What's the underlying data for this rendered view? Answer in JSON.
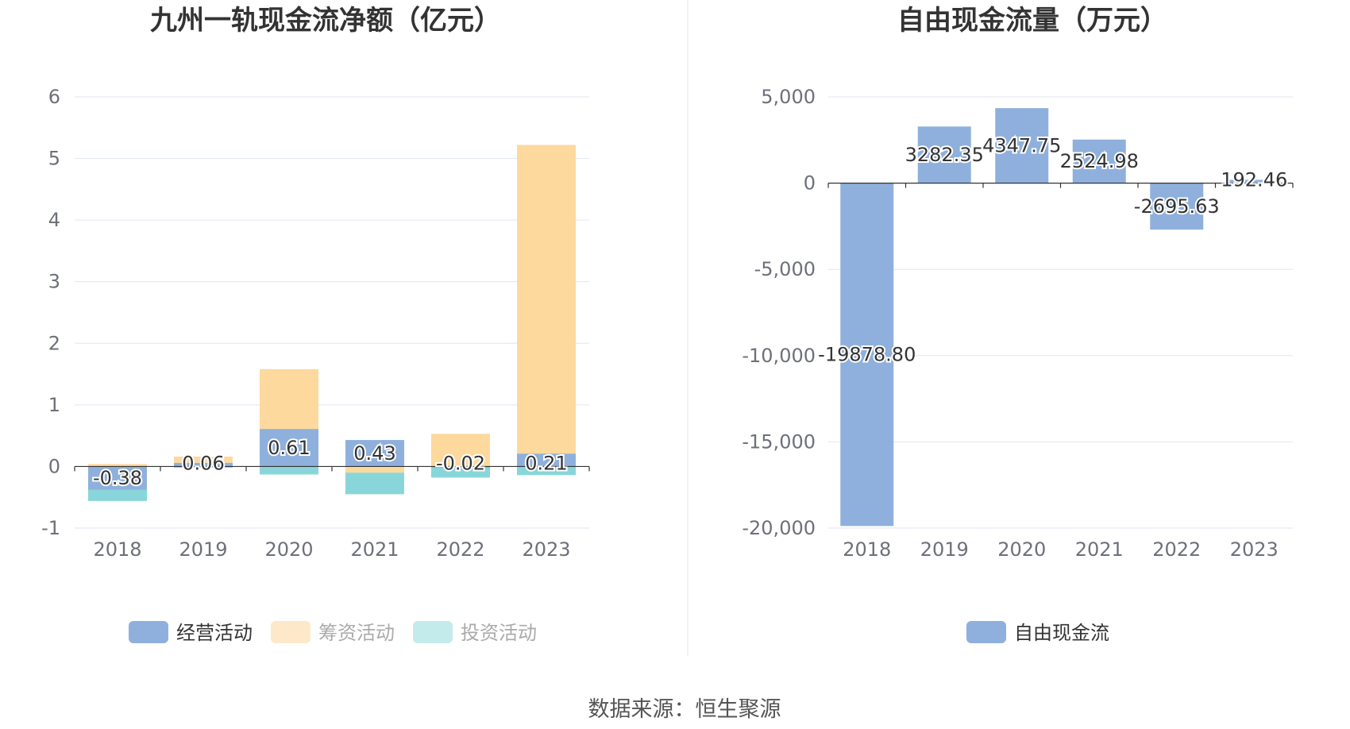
{
  "chart_data": [
    {
      "type": "bar",
      "stacked": true,
      "title": "九州一轨现金流净额（亿元）",
      "categories": [
        "2018",
        "2019",
        "2020",
        "2021",
        "2022",
        "2023"
      ],
      "ylim": [
        -1,
        6
      ],
      "yticks": [
        "6",
        "5",
        "4",
        "3",
        "2",
        "1",
        "0",
        "-1"
      ],
      "ytick_values": [
        6,
        5,
        4,
        3,
        2,
        1,
        0,
        -1
      ],
      "grid": true,
      "legend_position": "bottom",
      "series": [
        {
          "name": "经营活动",
          "color": "#8fb0dc",
          "values": [
            -0.38,
            0.06,
            0.61,
            0.43,
            -0.02,
            0.21
          ],
          "labels": [
            "-0.38",
            "0.06",
            "0.61",
            "0.43",
            "-0.02",
            "0.21"
          ]
        },
        {
          "name": "筹资活动",
          "color": "#fdd99e",
          "values": [
            0.04,
            0.1,
            0.97,
            -0.1,
            0.53,
            5.01
          ]
        },
        {
          "name": "投资活动",
          "color": "#88d6d9",
          "values": [
            -0.18,
            -0.02,
            -0.13,
            -0.35,
            -0.16,
            -0.14
          ]
        }
      ],
      "legend_colors": [
        "#8fb0dc",
        "#fde9c9",
        "#c3ebec"
      ],
      "legend_text_colors": [
        "#333333",
        "#aaaaaa",
        "#aaaaaa"
      ]
    },
    {
      "type": "bar",
      "title": "自由现金流量（万元）",
      "categories": [
        "2018",
        "2019",
        "2020",
        "2021",
        "2022",
        "2023"
      ],
      "ylim": [
        -20000,
        5000
      ],
      "yticks": [
        "5,000",
        "0",
        "-5,000",
        "-10,000",
        "-15,000",
        "-20,000"
      ],
      "ytick_values": [
        5000,
        0,
        -5000,
        -10000,
        -15000,
        -20000
      ],
      "grid": true,
      "legend_position": "bottom",
      "series": [
        {
          "name": "自由现金流",
          "color": "#8fb0dc",
          "values": [
            -19878.8,
            3282.35,
            4347.75,
            2524.98,
            -2695.63,
            192.46
          ],
          "labels": [
            "-19878.80",
            "3282.35",
            "4347.75",
            "2524.98",
            "-2695.63",
            "192.46"
          ]
        }
      ]
    }
  ],
  "footer": {
    "source": "数据来源：恒生聚源"
  }
}
